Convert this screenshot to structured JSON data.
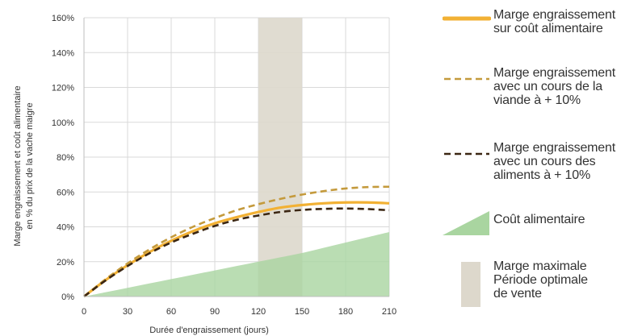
{
  "chart_data": {
    "type": "line",
    "xlabel": "Durée d'engraissement (jours)",
    "ylabel": "Marge engraissement et coût alimentaire en % du prix de la vache maigre",
    "ylabel_lines": [
      "Marge engraissement et coût alimentaire",
      "en % du prix de la vache maigre"
    ],
    "x_ticks": [
      "0",
      "30",
      "60",
      "90",
      "120",
      "150",
      "180",
      "210"
    ],
    "y_ticks": [
      "0%",
      "20%",
      "40%",
      "60%",
      "80%",
      "100%",
      "120%",
      "140%",
      "160%"
    ],
    "xlim": [
      0,
      210
    ],
    "ylim": [
      0,
      160
    ],
    "grid": true,
    "legend_position": "right",
    "x": [
      0,
      15,
      30,
      45,
      60,
      75,
      90,
      105,
      120,
      135,
      150,
      165,
      180,
      195,
      210
    ],
    "series": [
      {
        "name": "Marge engraissement sur coût alimentaire",
        "style": "solid",
        "color": "#F2B134",
        "values": [
          0,
          9.5,
          18,
          25.5,
          32,
          37.5,
          42,
          45.5,
          48.5,
          51,
          52.5,
          53.5,
          54,
          54,
          53.5
        ]
      },
      {
        "name": "Marge engraissement avec un cours de la viande à + 10%",
        "style": "dashed",
        "color": "#C49A3C",
        "values": [
          0,
          10,
          19,
          27,
          34,
          40,
          45,
          49.5,
          53,
          56,
          58.5,
          60.5,
          62,
          62.8,
          63
        ]
      },
      {
        "name": "Marge engraissement avec un cours des aliments à + 10%",
        "style": "dashed",
        "color": "#3B2612",
        "values": [
          0,
          9.3,
          17.5,
          24.8,
          31,
          36,
          40.5,
          44,
          46.5,
          48.5,
          49.7,
          50.3,
          50.5,
          50.2,
          49.5
        ]
      },
      {
        "name": "Coût alimentaire",
        "type": "area",
        "color": "#A9D5A0",
        "values": [
          0,
          2.5,
          5,
          7.5,
          10,
          12.5,
          15,
          17.5,
          20,
          22.5,
          25,
          28,
          31,
          34,
          37
        ]
      }
    ],
    "bands": [
      {
        "name": "Marge maximale Période optimale de vente",
        "x_range": [
          120,
          150
        ],
        "color": "#DDD8CC"
      }
    ]
  },
  "legend": {
    "items": [
      {
        "key": "base",
        "text": "Marge engraissement\nsur coût alimentaire"
      },
      {
        "key": "viande",
        "text": "Marge engraissement\navec un cours de la\nviande à + 10%"
      },
      {
        "key": "aliments",
        "text": "Marge engraissement\navec un cours des\naliments à + 10%"
      },
      {
        "key": "cout",
        "text": "Coût alimentaire"
      },
      {
        "key": "periode",
        "text": "Marge maximale\nPériode optimale\nde vente"
      }
    ]
  }
}
